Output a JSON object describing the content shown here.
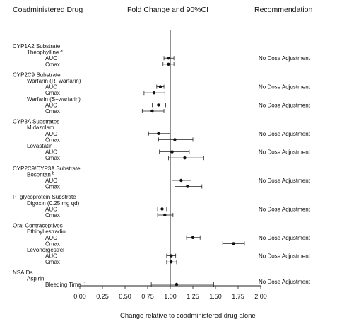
{
  "header": {
    "drug_col": "Coadministered Drug",
    "fold_col": "Fold Change and 90%CI",
    "rec_col": "Recommendation"
  },
  "chart_data": {
    "type": "forest",
    "xlabel": "Change relative to coadministered drug alone",
    "xlim": [
      0.0,
      2.0
    ],
    "xticks": [
      "0.00",
      "0.25",
      "0.50",
      "0.75",
      "1.00",
      "1.25",
      "1.50",
      "1.75",
      "2.00"
    ],
    "reference_line": 1.0,
    "rows": [
      {
        "kind": "group",
        "text": "CYP1A2 Substrate"
      },
      {
        "kind": "drug",
        "text": "Theophylline",
        "sup": "a"
      },
      {
        "kind": "metric",
        "text": "AUC",
        "est": 0.98,
        "lo": 0.93,
        "hi": 1.04,
        "rec": "No Dose Adjustment"
      },
      {
        "kind": "metric",
        "text": "Cmax",
        "est": 0.98,
        "lo": 0.92,
        "hi": 1.04
      },
      {
        "kind": "gap"
      },
      {
        "kind": "group",
        "text": "CYP2C9 Substrate"
      },
      {
        "kind": "drug",
        "text": "Warfarin (R−warfarin)"
      },
      {
        "kind": "metric",
        "text": "AUC",
        "est": 0.89,
        "lo": 0.85,
        "hi": 0.93,
        "rec": "No Dose Adjustment"
      },
      {
        "kind": "metric",
        "text": "Cmax",
        "est": 0.82,
        "lo": 0.71,
        "hi": 0.94
      },
      {
        "kind": "drug",
        "text": "Warfarin (S−warfarin)"
      },
      {
        "kind": "metric",
        "text": "AUC",
        "est": 0.87,
        "lo": 0.8,
        "hi": 0.95,
        "rec": "No Dose Adjustment"
      },
      {
        "kind": "metric",
        "text": "Cmax",
        "est": 0.8,
        "lo": 0.69,
        "hi": 0.93
      },
      {
        "kind": "gap"
      },
      {
        "kind": "group",
        "text": "CYP3A Substrates"
      },
      {
        "kind": "drug",
        "text": "Midazolam"
      },
      {
        "kind": "metric",
        "text": "AUC",
        "est": 0.87,
        "lo": 0.76,
        "hi": 1.0,
        "rec": "No Dose Adjustment"
      },
      {
        "kind": "metric",
        "text": "Cmax",
        "est": 1.05,
        "lo": 0.87,
        "hi": 1.25
      },
      {
        "kind": "drug",
        "text": "Lovastatin"
      },
      {
        "kind": "metric",
        "text": "AUC",
        "est": 1.02,
        "lo": 0.88,
        "hi": 1.21,
        "rec": "No Dose Adjustment"
      },
      {
        "kind": "metric",
        "text": "Cmax",
        "est": 1.16,
        "lo": 0.98,
        "hi": 1.37
      },
      {
        "kind": "gap"
      },
      {
        "kind": "group",
        "text": "CYP2C9/CYP3A Substrate"
      },
      {
        "kind": "drug",
        "text": "Bosentan",
        "sup": "b"
      },
      {
        "kind": "metric",
        "text": "AUC",
        "est": 1.12,
        "lo": 1.02,
        "hi": 1.23,
        "rec": "No Dose Adjustment"
      },
      {
        "kind": "metric",
        "text": "Cmax",
        "est": 1.19,
        "lo": 1.05,
        "hi": 1.35
      },
      {
        "kind": "gap"
      },
      {
        "kind": "group",
        "text": "P−glycoprotein Substrate"
      },
      {
        "kind": "drug",
        "text": "Digoxin (0.25 mg qd)"
      },
      {
        "kind": "metric",
        "text": "AUC",
        "est": 0.91,
        "lo": 0.86,
        "hi": 0.96,
        "rec": "No Dose Adjustment"
      },
      {
        "kind": "metric",
        "text": "Cmax",
        "est": 0.94,
        "lo": 0.86,
        "hi": 1.03
      },
      {
        "kind": "gap"
      },
      {
        "kind": "group",
        "text": "Oral Contraceptives"
      },
      {
        "kind": "drug",
        "text": "Ethinyl estradiol"
      },
      {
        "kind": "metric",
        "text": "AUC",
        "est": 1.25,
        "lo": 1.18,
        "hi": 1.33,
        "rec": "No Dose Adjustment"
      },
      {
        "kind": "metric",
        "text": "Cmax",
        "est": 1.7,
        "lo": 1.58,
        "hi": 1.82
      },
      {
        "kind": "drug",
        "text": "Levonorgestrel"
      },
      {
        "kind": "metric",
        "text": "AUC",
        "est": 1.01,
        "lo": 0.96,
        "hi": 1.06,
        "rec": "No Dose Adjustment"
      },
      {
        "kind": "metric",
        "text": "Cmax",
        "est": 1.01,
        "lo": 0.96,
        "hi": 1.07
      },
      {
        "kind": "gap"
      },
      {
        "kind": "group",
        "text": "NSAIDs"
      },
      {
        "kind": "drug",
        "text": "Aspirin"
      },
      {
        "kind": "metric",
        "text": "Bleeding Time",
        "sup": "c",
        "est": 1.07,
        "lo": 0.79,
        "hi": 1.48,
        "rec": "No Dose Adjustment",
        "rec_offset": 0.5
      }
    ]
  }
}
